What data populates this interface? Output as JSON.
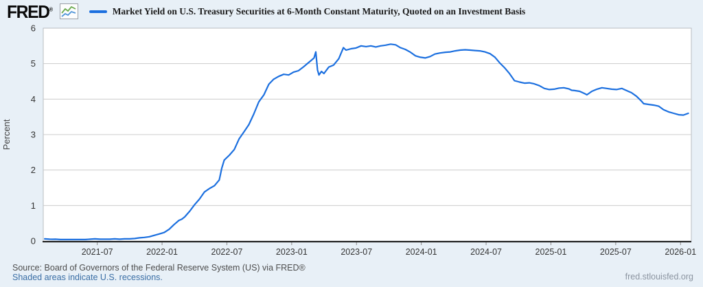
{
  "header": {
    "logo_text": "FRED",
    "logo_reg": "®",
    "legend_label": "Market Yield on U.S. Treasury Securities at 6-Month Constant Maturity, Quoted on an Investment Basis",
    "legend_color": "#1b6fdf"
  },
  "footer": {
    "source_line": "Source: Board of Governors of the Federal Reserve System (US) via FRED®",
    "recession_note": "Shaded areas indicate U.S. recessions.",
    "site_url": "fred.stlouisfed.org"
  },
  "colors": {
    "page_bg": "#e8f0f7",
    "plot_bg": "#ffffff",
    "grid": "#cccccc",
    "plot_border": "#b8bcc2",
    "axis": "#1a1a1a",
    "tick_text": "#333333",
    "series_line": "#1b6fdf",
    "logo_icon_green": "#6aaa4e",
    "logo_icon_blue": "#4f94d8"
  },
  "chart_data": {
    "type": "line",
    "title": "Market Yield on U.S. Treasury Securities at 6-Month Constant Maturity, Quoted on an Investment Basis",
    "ylabel": "Percent",
    "ylim": [
      0,
      6
    ],
    "yticks": [
      0,
      1,
      2,
      3,
      4,
      5,
      6
    ],
    "grid": "horizontal",
    "legend_position": "top",
    "x_domain": [
      "2021-02-01",
      "2026-02-01"
    ],
    "xtick_labels": [
      "2021-07",
      "2022-01",
      "2022-07",
      "2023-01",
      "2023-07",
      "2024-01",
      "2024-07",
      "2025-01",
      "2025-07",
      "2026-01"
    ],
    "series": [
      {
        "name": "Market Yield on U.S. Treasury Securities at 6-Month Constant Maturity, Quoted on an Investment Basis",
        "color": "#1b6fdf",
        "points": [
          [
            "2021-02-05",
            0.06
          ],
          [
            "2021-02-19",
            0.05
          ],
          [
            "2021-03-05",
            0.05
          ],
          [
            "2021-03-19",
            0.04
          ],
          [
            "2021-04-02",
            0.04
          ],
          [
            "2021-04-16",
            0.04
          ],
          [
            "2021-04-30",
            0.04
          ],
          [
            "2021-05-14",
            0.04
          ],
          [
            "2021-05-28",
            0.04
          ],
          [
            "2021-06-11",
            0.05
          ],
          [
            "2021-06-25",
            0.06
          ],
          [
            "2021-07-09",
            0.05
          ],
          [
            "2021-07-23",
            0.05
          ],
          [
            "2021-08-06",
            0.05
          ],
          [
            "2021-08-20",
            0.06
          ],
          [
            "2021-09-03",
            0.05
          ],
          [
            "2021-09-17",
            0.06
          ],
          [
            "2021-10-01",
            0.06
          ],
          [
            "2021-10-15",
            0.07
          ],
          [
            "2021-10-29",
            0.09
          ],
          [
            "2021-11-12",
            0.1
          ],
          [
            "2021-11-26",
            0.12
          ],
          [
            "2021-12-10",
            0.16
          ],
          [
            "2021-12-24",
            0.2
          ],
          [
            "2022-01-07",
            0.24
          ],
          [
            "2022-01-21",
            0.33
          ],
          [
            "2022-02-04",
            0.46
          ],
          [
            "2022-02-18",
            0.58
          ],
          [
            "2022-03-04",
            0.68
          ],
          [
            "2022-03-18",
            0.84
          ],
          [
            "2022-04-01",
            1.02
          ],
          [
            "2022-04-15",
            1.18
          ],
          [
            "2022-04-29",
            1.38
          ],
          [
            "2022-05-13",
            1.48
          ],
          [
            "2022-05-27",
            1.56
          ],
          [
            "2022-06-10",
            1.72
          ],
          [
            "2022-06-17",
            2.05
          ],
          [
            "2022-06-24",
            2.28
          ],
          [
            "2022-07-08",
            2.42
          ],
          [
            "2022-07-22",
            2.58
          ],
          [
            "2022-08-05",
            2.88
          ],
          [
            "2022-08-19",
            3.08
          ],
          [
            "2022-09-02",
            3.28
          ],
          [
            "2022-09-16",
            3.58
          ],
          [
            "2022-09-30",
            3.92
          ],
          [
            "2022-10-14",
            4.12
          ],
          [
            "2022-10-28",
            4.42
          ],
          [
            "2022-11-11",
            4.56
          ],
          [
            "2022-11-25",
            4.64
          ],
          [
            "2022-12-09",
            4.7
          ],
          [
            "2022-12-23",
            4.68
          ],
          [
            "2023-01-06",
            4.76
          ],
          [
            "2023-01-20",
            4.8
          ],
          [
            "2023-02-03",
            4.9
          ],
          [
            "2023-02-17",
            5.02
          ],
          [
            "2023-03-03",
            5.16
          ],
          [
            "2023-03-08",
            5.33
          ],
          [
            "2023-03-13",
            4.82
          ],
          [
            "2023-03-17",
            4.68
          ],
          [
            "2023-03-24",
            4.78
          ],
          [
            "2023-03-31",
            4.72
          ],
          [
            "2023-04-14",
            4.9
          ],
          [
            "2023-04-28",
            4.96
          ],
          [
            "2023-05-12",
            5.14
          ],
          [
            "2023-05-25",
            5.45
          ],
          [
            "2023-06-02",
            5.38
          ],
          [
            "2023-06-16",
            5.42
          ],
          [
            "2023-06-30",
            5.44
          ],
          [
            "2023-07-14",
            5.5
          ],
          [
            "2023-07-28",
            5.48
          ],
          [
            "2023-08-11",
            5.5
          ],
          [
            "2023-08-25",
            5.47
          ],
          [
            "2023-09-08",
            5.5
          ],
          [
            "2023-09-22",
            5.52
          ],
          [
            "2023-10-06",
            5.55
          ],
          [
            "2023-10-20",
            5.53
          ],
          [
            "2023-11-03",
            5.45
          ],
          [
            "2023-11-17",
            5.4
          ],
          [
            "2023-12-01",
            5.32
          ],
          [
            "2023-12-15",
            5.22
          ],
          [
            "2023-12-29",
            5.18
          ],
          [
            "2024-01-12",
            5.16
          ],
          [
            "2024-01-26",
            5.2
          ],
          [
            "2024-02-09",
            5.27
          ],
          [
            "2024-02-23",
            5.3
          ],
          [
            "2024-03-08",
            5.32
          ],
          [
            "2024-03-22",
            5.33
          ],
          [
            "2024-04-05",
            5.36
          ],
          [
            "2024-04-19",
            5.38
          ],
          [
            "2024-05-03",
            5.39
          ],
          [
            "2024-05-17",
            5.38
          ],
          [
            "2024-05-31",
            5.37
          ],
          [
            "2024-06-14",
            5.36
          ],
          [
            "2024-06-28",
            5.33
          ],
          [
            "2024-07-12",
            5.28
          ],
          [
            "2024-07-26",
            5.18
          ],
          [
            "2024-08-09",
            5.02
          ],
          [
            "2024-08-23",
            4.88
          ],
          [
            "2024-09-06",
            4.72
          ],
          [
            "2024-09-20",
            4.52
          ],
          [
            "2024-10-04",
            4.48
          ],
          [
            "2024-10-18",
            4.45
          ],
          [
            "2024-11-01",
            4.46
          ],
          [
            "2024-11-15",
            4.43
          ],
          [
            "2024-11-29",
            4.38
          ],
          [
            "2024-12-13",
            4.3
          ],
          [
            "2024-12-27",
            4.27
          ],
          [
            "2025-01-10",
            4.28
          ],
          [
            "2025-01-24",
            4.31
          ],
          [
            "2025-02-07",
            4.32
          ],
          [
            "2025-02-21",
            4.29
          ],
          [
            "2025-03-07",
            4.24
          ],
          [
            "2025-03-21",
            4.22
          ],
          [
            "2025-04-04",
            4.16
          ],
          [
            "2025-04-11",
            4.12
          ],
          [
            "2025-04-25",
            4.22
          ],
          [
            "2025-05-09",
            4.28
          ],
          [
            "2025-05-23",
            4.32
          ],
          [
            "2025-06-06",
            4.3
          ],
          [
            "2025-06-20",
            4.28
          ],
          [
            "2025-07-03",
            4.27
          ],
          [
            "2025-07-18",
            4.3
          ],
          [
            "2025-08-01",
            4.24
          ],
          [
            "2025-08-15",
            4.18
          ],
          [
            "2025-08-29",
            4.08
          ],
          [
            "2025-09-12",
            3.95
          ],
          [
            "2025-09-19",
            3.87
          ],
          [
            "2025-10-03",
            3.85
          ],
          [
            "2025-10-17",
            3.83
          ],
          [
            "2025-10-31",
            3.8
          ],
          [
            "2025-11-14",
            3.7
          ],
          [
            "2025-11-28",
            3.64
          ],
          [
            "2025-12-12",
            3.6
          ],
          [
            "2025-12-26",
            3.56
          ],
          [
            "2026-01-09",
            3.55
          ],
          [
            "2026-01-23",
            3.6
          ]
        ]
      }
    ]
  }
}
